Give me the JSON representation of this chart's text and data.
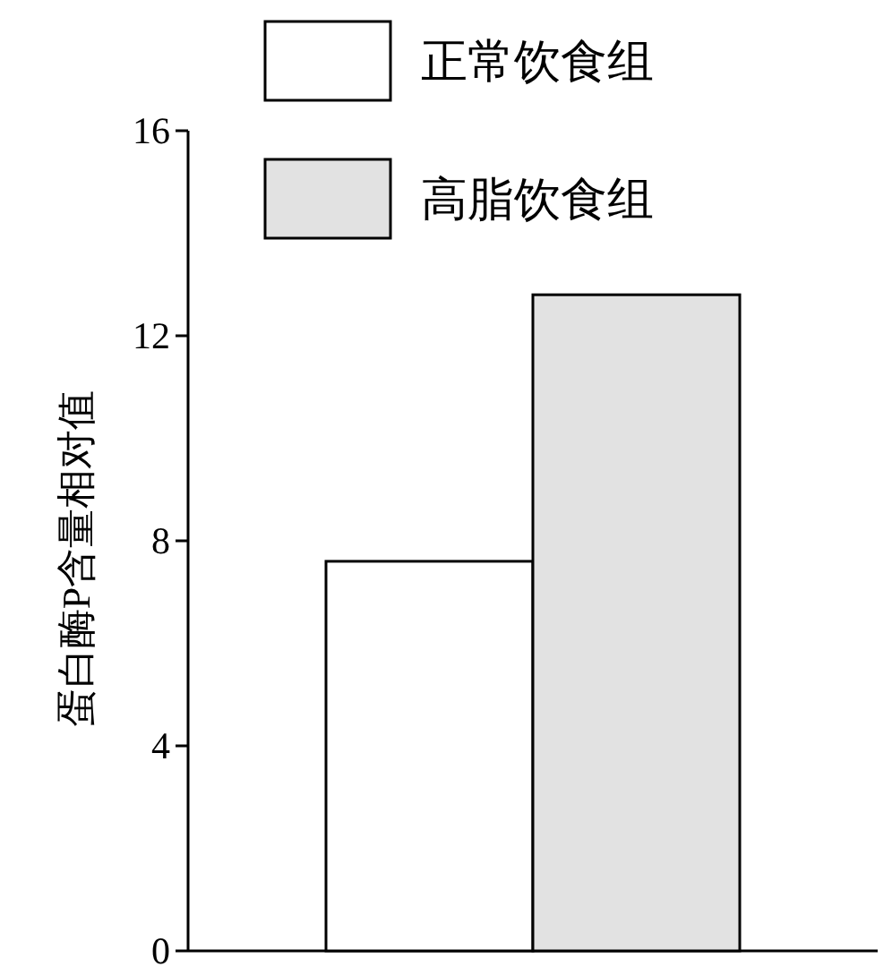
{
  "chart_data": {
    "type": "bar",
    "ylabel": "蛋白酶P含量相对值",
    "categories": [
      null
    ],
    "series": [
      {
        "name": "正常饮食组",
        "color": "#ffffff",
        "values": [
          7.6
        ]
      },
      {
        "name": "高脂饮食组",
        "color": "#e2e2e2",
        "values": [
          12.8
        ]
      }
    ],
    "ylim": [
      0,
      16
    ],
    "yticks": [
      0,
      4,
      8,
      12,
      16
    ],
    "grid": false,
    "legend": "top"
  }
}
